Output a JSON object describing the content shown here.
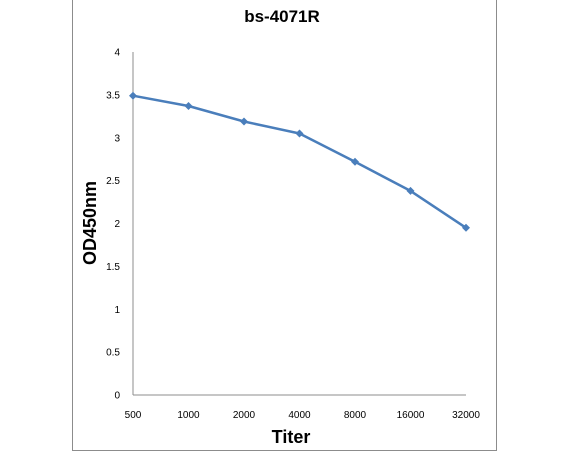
{
  "chart_data": {
    "type": "line",
    "title": "bs-4071R",
    "xlabel": "Titer",
    "ylabel": "OD450nm",
    "categories": [
      "500",
      "1000",
      "2000",
      "4000",
      "8000",
      "16000",
      "32000"
    ],
    "y_ticks": [
      "0",
      "0.5",
      "1",
      "1.5",
      "2",
      "2.5",
      "3",
      "3.5",
      "4"
    ],
    "ylim": [
      0,
      4
    ],
    "grid": false,
    "legend": "none",
    "series": [
      {
        "values": [
          3.49,
          3.37,
          3.19,
          3.05,
          2.72,
          2.38,
          1.95
        ],
        "color": "#4a7ebb",
        "marker": "diamond"
      }
    ]
  }
}
